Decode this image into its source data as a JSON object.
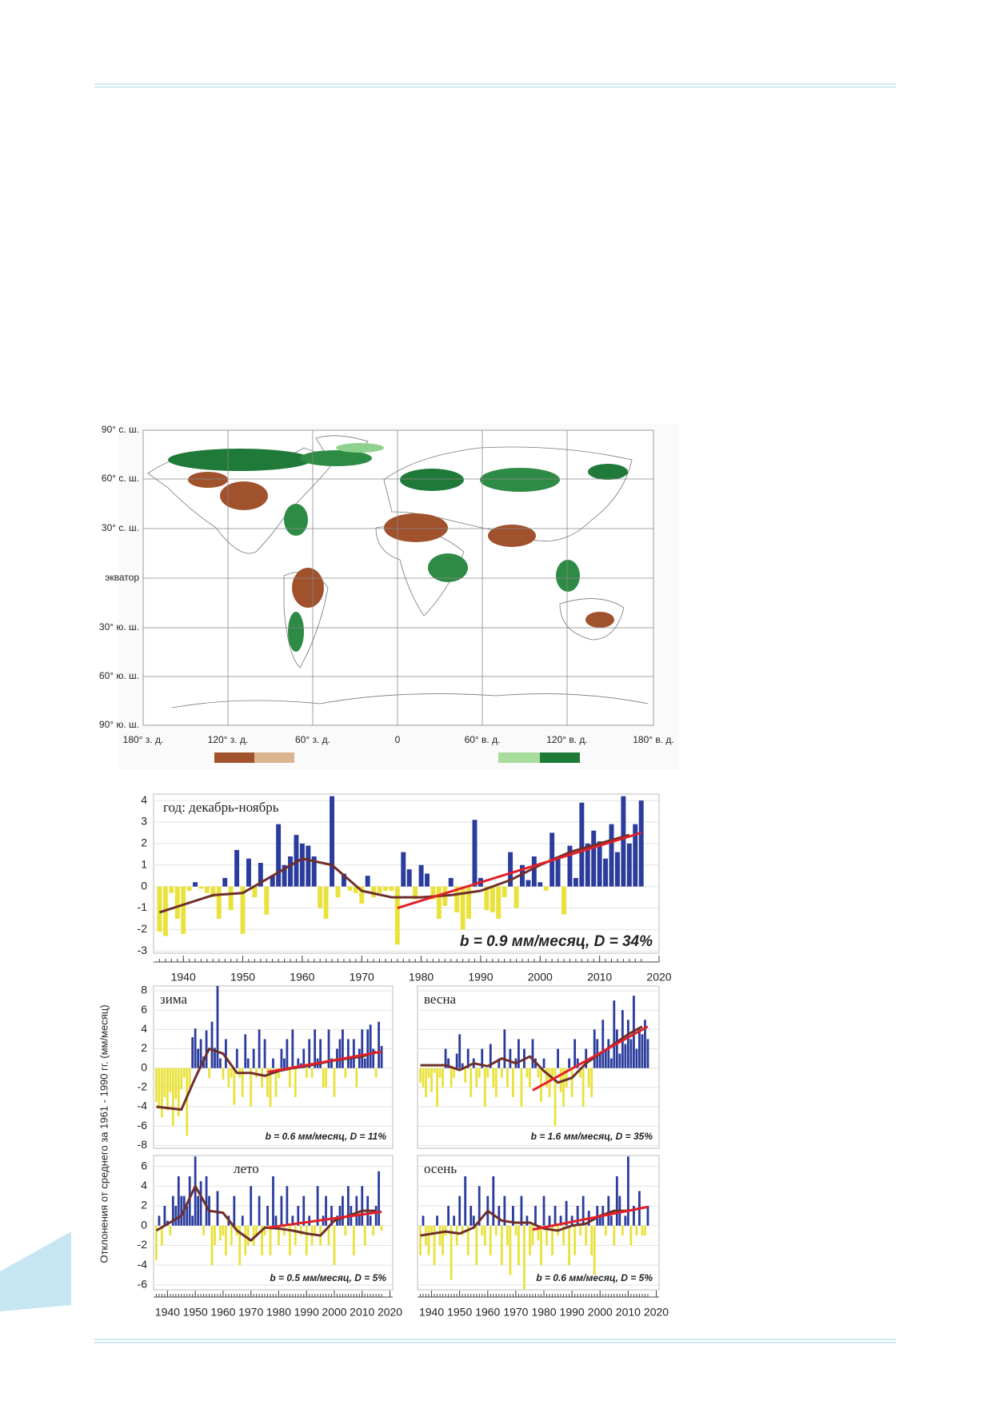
{
  "map": {
    "lat_labels": [
      "90° с. ш.",
      "60° с. ш.",
      "30° с. ш.",
      "экватор",
      "30° ю. ш.",
      "60° ю. ш.",
      "90° ю. ш."
    ],
    "lon_labels": [
      "180° з. д.",
      "120° з. д.",
      "60° з. д.",
      "0",
      "60° в. д.",
      "120° в. д.",
      "180° в. д."
    ]
  },
  "y_axis_label": "Отклонения от среднего за 1961 - 1990 гг. (мм/месяц)",
  "chart_data": [
    {
      "type": "bar",
      "title": "год: декабрь-ноябрь",
      "annotation": "b = 0.9 мм/месяц, D = 34%",
      "x": [
        1936,
        1937,
        1938,
        1939,
        1940,
        1941,
        1942,
        1943,
        1944,
        1945,
        1946,
        1947,
        1948,
        1949,
        1950,
        1951,
        1952,
        1953,
        1954,
        1955,
        1956,
        1957,
        1958,
        1959,
        1960,
        1961,
        1962,
        1963,
        1964,
        1965,
        1966,
        1967,
        1968,
        1969,
        1970,
        1971,
        1972,
        1973,
        1974,
        1975,
        1976,
        1977,
        1978,
        1979,
        1980,
        1981,
        1982,
        1983,
        1984,
        1985,
        1986,
        1987,
        1988,
        1989,
        1990,
        1991,
        1992,
        1993,
        1994,
        1995,
        1996,
        1997,
        1998,
        1999,
        2000,
        2001,
        2002,
        2003,
        2004,
        2005,
        2006,
        2007,
        2008,
        2009,
        2010,
        2011,
        2012,
        2013,
        2014,
        2015,
        2016,
        2017
      ],
      "values": [
        -2.1,
        -2.3,
        -0.3,
        -1.5,
        -2.2,
        -0.2,
        0.2,
        -0.1,
        -0.3,
        -0.5,
        -1.5,
        0.4,
        -1.1,
        1.7,
        -2.2,
        1.3,
        -0.5,
        1.1,
        -1.3,
        0.5,
        2.9,
        1.0,
        1.4,
        2.4,
        2.0,
        1.9,
        1.4,
        -1.0,
        -1.5,
        4.2,
        -0.5,
        0.6,
        -0.2,
        -0.3,
        -0.8,
        0.5,
        -0.5,
        -0.3,
        -0.2,
        -0.2,
        -2.7,
        1.6,
        0.8,
        -0.6,
        1.0,
        0.6,
        -0.6,
        -1.5,
        -0.9,
        0.4,
        -1.2,
        -2.0,
        -1.5,
        3.1,
        0.4,
        -1.1,
        -1.2,
        -1.5,
        -0.5,
        1.6,
        -1.0,
        1.0,
        0.3,
        1.4,
        0.2,
        -0.2,
        2.5,
        1.4,
        -1.3,
        1.9,
        0.4,
        3.9,
        2.0,
        2.6,
        2.1,
        1.3,
        2.9,
        1.6,
        4.2,
        2.0,
        2.9,
        4.0
      ],
      "colors": {
        "positive": "#2b3c9c",
        "negative": "#e9e23b"
      },
      "smoothed": {
        "color": "#6e2f2b",
        "x": [
          1936,
          1945,
          1950,
          1955,
          1960,
          1965,
          1970,
          1975,
          1980,
          1985,
          1990,
          1995,
          2000,
          2005,
          2010,
          2015
        ],
        "values": [
          -1.2,
          -0.4,
          -0.3,
          0.5,
          1.3,
          1.0,
          -0.2,
          -0.5,
          -0.5,
          -0.4,
          -0.2,
          0.3,
          1.0,
          1.6,
          2.0,
          2.4
        ]
      },
      "trend": {
        "color": "#e2202a",
        "x": [
          1976,
          2017
        ],
        "values": [
          -1.0,
          2.5
        ]
      },
      "xlim": [
        1935,
        2020
      ],
      "ylim": [
        -3.1,
        4.3
      ],
      "xticks": [
        1940,
        1950,
        1960,
        1970,
        1980,
        1990,
        2000,
        2010,
        2020
      ],
      "yticks": [
        -3,
        -2,
        -1,
        0,
        1,
        2,
        3,
        4
      ]
    },
    {
      "type": "bar",
      "title": "зима",
      "annotation": "b = 0.6 мм/месяц, D = 11%",
      "x": [
        1936,
        1937,
        1938,
        1939,
        1940,
        1941,
        1942,
        1943,
        1944,
        1945,
        1946,
        1947,
        1948,
        1949,
        1950,
        1951,
        1952,
        1953,
        1954,
        1955,
        1956,
        1957,
        1958,
        1959,
        1960,
        1961,
        1962,
        1963,
        1964,
        1965,
        1966,
        1967,
        1968,
        1969,
        1970,
        1971,
        1972,
        1973,
        1974,
        1975,
        1976,
        1977,
        1978,
        1979,
        1980,
        1981,
        1982,
        1983,
        1984,
        1985,
        1986,
        1987,
        1988,
        1989,
        1990,
        1991,
        1992,
        1993,
        1994,
        1995,
        1996,
        1997,
        1998,
        1999,
        2000,
        2001,
        2002,
        2003,
        2004,
        2005,
        2006,
        2007,
        2008,
        2009,
        2010,
        2011,
        2012,
        2013,
        2014,
        2015,
        2016,
        2017
      ],
      "values": [
        -3.5,
        -4.2,
        -5.1,
        -3.0,
        -4.4,
        -2.5,
        -6.0,
        -3.2,
        -5.0,
        -2.2,
        -1.0,
        -7.0,
        -2.0,
        3.2,
        4.1,
        2.0,
        3.0,
        1.2,
        3.9,
        -1.0,
        4.8,
        2.1,
        8.5,
        1.0,
        -1.2,
        3.0,
        -2.0,
        -1.0,
        -3.8,
        2.0,
        -1.0,
        -3.0,
        3.5,
        1.0,
        -4.0,
        2.0,
        -1.0,
        4.0,
        -2.0,
        3.0,
        -3.0,
        -4.0,
        1.0,
        -3.0,
        -1.0,
        2.0,
        1.0,
        3.0,
        -2.0,
        4.0,
        -3.0,
        1.0,
        0.5,
        2.0,
        -1.0,
        3.0,
        -1.0,
        4.0,
        1.0,
        3.0,
        -2.0,
        -2.0,
        4.0,
        1.0,
        -3.0,
        2.0,
        3.0,
        4.0,
        -1.0,
        3.0,
        1.0,
        3.0,
        -2.0,
        2.0,
        4.0,
        1.0,
        4.0,
        4.5,
        2.0,
        -1.0,
        4.8,
        2.3
      ],
      "colors": {
        "positive": "#2b3c9c",
        "negative": "#e9e23b"
      },
      "smoothed": {
        "color": "#6e2f2b",
        "x": [
          1936,
          1945,
          1950,
          1955,
          1960,
          1965,
          1970,
          1975,
          1980,
          1985,
          1990,
          1995,
          2000,
          2005,
          2010,
          2015
        ],
        "values": [
          -4.0,
          -4.3,
          -1.0,
          2.0,
          1.5,
          -0.5,
          -0.5,
          -0.8,
          -0.3,
          0.0,
          0.2,
          0.5,
          0.8,
          1.0,
          1.2,
          1.7
        ]
      },
      "trend": {
        "color": "#e2202a",
        "x": [
          1976,
          2017
        ],
        "values": [
          -0.4,
          1.7
        ]
      },
      "xlim": [
        1935,
        2021
      ],
      "ylim": [
        -8.3,
        8.5
      ],
      "yticks": [
        -8,
        -6,
        -4,
        -2,
        0,
        2,
        4,
        6,
        8
      ]
    },
    {
      "type": "bar",
      "title": "весна",
      "annotation": "b = 1.6 мм/месяц, D = 35%",
      "x": [
        1936,
        1937,
        1938,
        1939,
        1940,
        1941,
        1942,
        1943,
        1944,
        1945,
        1946,
        1947,
        1948,
        1949,
        1950,
        1951,
        1952,
        1953,
        1954,
        1955,
        1956,
        1957,
        1958,
        1959,
        1960,
        1961,
        1962,
        1963,
        1964,
        1965,
        1966,
        1967,
        1968,
        1969,
        1970,
        1971,
        1972,
        1973,
        1974,
        1975,
        1976,
        1977,
        1978,
        1979,
        1980,
        1981,
        1982,
        1983,
        1984,
        1985,
        1986,
        1987,
        1988,
        1989,
        1990,
        1991,
        1992,
        1993,
        1994,
        1995,
        1996,
        1997,
        1998,
        1999,
        2000,
        2001,
        2002,
        2003,
        2004,
        2005,
        2006,
        2007,
        2008,
        2009,
        2010,
        2011,
        2012,
        2013,
        2014,
        2015,
        2016,
        2017
      ],
      "values": [
        -1.5,
        -2.0,
        -3.0,
        -1.0,
        -2.5,
        -0.5,
        -4.0,
        -1.0,
        -2.0,
        2.0,
        1.0,
        -2.0,
        -1.0,
        1.5,
        3.5,
        0.5,
        -1.5,
        2.0,
        -3.0,
        1.0,
        -2.0,
        -1.0,
        2.0,
        -4.0,
        -1.0,
        2.5,
        -2.0,
        -3.0,
        1.0,
        -1.0,
        4.0,
        -2.0,
        2.0,
        -3.0,
        1.0,
        3.0,
        -4.0,
        2.0,
        -1.0,
        -2.0,
        3.0,
        1.0,
        -1.0,
        -3.5,
        1.0,
        -2.0,
        -3.0,
        -1.0,
        -6.0,
        2.0,
        -2.5,
        -4.0,
        -2.0,
        1.0,
        -3.0,
        3.0,
        1.0,
        -1.0,
        -4.0,
        2.0,
        -2.0,
        -3.0,
        4.0,
        3.0,
        1.5,
        5.0,
        2.0,
        3.0,
        1.0,
        7.0,
        4.0,
        1.5,
        6.0,
        2.5,
        5.0,
        3.0,
        7.5,
        2.0,
        4.0,
        3.5,
        5.0,
        3.0
      ],
      "colors": {
        "positive": "#2b3c9c",
        "negative": "#e9e23b"
      },
      "smoothed": {
        "color": "#6e2f2b",
        "x": [
          1936,
          1945,
          1950,
          1955,
          1960,
          1965,
          1970,
          1975,
          1980,
          1985,
          1990,
          1995,
          2000,
          2005,
          2010,
          2015
        ],
        "values": [
          0.3,
          0.3,
          -0.2,
          0.5,
          0.2,
          1.0,
          0.5,
          1.2,
          -0.3,
          -1.5,
          -1.0,
          0.5,
          1.5,
          2.5,
          3.5,
          4.3
        ]
      },
      "trend": {
        "color": "#e2202a",
        "x": [
          1976,
          2017
        ],
        "values": [
          -2.3,
          4.3
        ]
      },
      "xlim": [
        1935,
        2021
      ],
      "ylim": [
        -8.3,
        8.5
      ],
      "yticks": [
        -8,
        -6,
        -4,
        -2,
        0,
        2,
        4,
        6,
        8
      ]
    },
    {
      "type": "bar",
      "title": "лето",
      "annotation": "b = 0.5 мм/месяц, D = 5%",
      "x": [
        1936,
        1937,
        1938,
        1939,
        1940,
        1941,
        1942,
        1943,
        1944,
        1945,
        1946,
        1947,
        1948,
        1949,
        1950,
        1951,
        1952,
        1953,
        1954,
        1955,
        1956,
        1957,
        1958,
        1959,
        1960,
        1961,
        1962,
        1963,
        1964,
        1965,
        1966,
        1967,
        1968,
        1969,
        1970,
        1971,
        1972,
        1973,
        1974,
        1975,
        1976,
        1977,
        1978,
        1979,
        1980,
        1981,
        1982,
        1983,
        1984,
        1985,
        1986,
        1987,
        1988,
        1989,
        1990,
        1991,
        1992,
        1993,
        1994,
        1995,
        1996,
        1997,
        1998,
        1999,
        2000,
        2001,
        2002,
        2003,
        2004,
        2005,
        2006,
        2007,
        2008,
        2009,
        2010,
        2011,
        2012,
        2013,
        2014,
        2015,
        2016,
        2017
      ],
      "values": [
        -3.5,
        1.0,
        -2.0,
        2.0,
        0.5,
        -1.0,
        3.0,
        2.0,
        5.0,
        3.0,
        3.0,
        2.0,
        5.0,
        1.0,
        7.0,
        3.0,
        4.5,
        -1.0,
        5.0,
        3.0,
        -4.0,
        -2.0,
        3.5,
        -1.5,
        -1.0,
        -3.0,
        1.0,
        -2.0,
        3.0,
        -1.0,
        -4.0,
        1.0,
        -3.0,
        -2.0,
        4.0,
        -2.0,
        -1.0,
        3.0,
        -3.0,
        -1.0,
        2.0,
        -3.0,
        5.0,
        1.0,
        -2.0,
        3.0,
        -1.0,
        4.0,
        -3.0,
        1.0,
        -2.0,
        2.0,
        -1.0,
        3.0,
        -3.0,
        1.0,
        -2.0,
        -1.0,
        4.0,
        -2.0,
        1.0,
        3.0,
        -2.0,
        2.0,
        -4.0,
        1.0,
        2.0,
        3.0,
        -1.0,
        4.0,
        2.0,
        -3.0,
        3.0,
        1.0,
        4.0,
        -2.0,
        3.0,
        1.0,
        -1.0,
        2.0,
        5.5,
        -0.5
      ],
      "colors": {
        "positive": "#2b3c9c",
        "negative": "#e9e23b"
      },
      "smoothed": {
        "color": "#6e2f2b",
        "x": [
          1936,
          1945,
          1950,
          1955,
          1960,
          1965,
          1970,
          1975,
          1980,
          1985,
          1990,
          1995,
          2000,
          2005,
          2010,
          2015
        ],
        "values": [
          -0.5,
          1.0,
          4.0,
          1.5,
          1.3,
          -0.5,
          -1.5,
          -0.2,
          -0.3,
          -0.5,
          -0.8,
          -1.0,
          0.5,
          1.0,
          1.5,
          1.5
        ]
      },
      "trend": {
        "color": "#e2202a",
        "x": [
          1976,
          2017
        ],
        "values": [
          -0.2,
          1.4
        ]
      },
      "xlim": [
        1935,
        2021
      ],
      "ylim": [
        -6.5,
        7.1
      ],
      "xticks": [
        1940,
        1950,
        1960,
        1970,
        1980,
        1990,
        2000,
        2010,
        2020
      ],
      "yticks": [
        -6,
        -4,
        -2,
        0,
        2,
        4,
        6
      ]
    },
    {
      "type": "bar",
      "title": "осень",
      "annotation": "b = 0.6 мм/месяц, D = 5%",
      "x": [
        1936,
        1937,
        1938,
        1939,
        1940,
        1941,
        1942,
        1943,
        1944,
        1945,
        1946,
        1947,
        1948,
        1949,
        1950,
        1951,
        1952,
        1953,
        1954,
        1955,
        1956,
        1957,
        1958,
        1959,
        1960,
        1961,
        1962,
        1963,
        1964,
        1965,
        1966,
        1967,
        1968,
        1969,
        1970,
        1971,
        1972,
        1973,
        1974,
        1975,
        1976,
        1977,
        1978,
        1979,
        1980,
        1981,
        1982,
        1983,
        1984,
        1985,
        1986,
        1987,
        1988,
        1989,
        1990,
        1991,
        1992,
        1993,
        1994,
        1995,
        1996,
        1997,
        1998,
        1999,
        2000,
        2001,
        2002,
        2003,
        2004,
        2005,
        2006,
        2007,
        2008,
        2009,
        2010,
        2011,
        2012,
        2013,
        2014,
        2015,
        2016,
        2017
      ],
      "values": [
        -3.0,
        1.0,
        -2.0,
        -3.0,
        -1.0,
        -4.0,
        1.0,
        -2.0,
        -3.0,
        -1.0,
        2.0,
        -5.5,
        1.0,
        -2.0,
        3.0,
        -1.0,
        5.0,
        -3.0,
        2.0,
        1.0,
        -4.0,
        4.0,
        -1.0,
        -2.0,
        3.0,
        -3.0,
        5.0,
        -1.0,
        2.0,
        -4.0,
        3.0,
        -2.0,
        -5.0,
        2.0,
        -1.0,
        -4.0,
        3.0,
        -6.5,
        1.0,
        -3.0,
        -2.0,
        2.0,
        -1.5,
        -4.0,
        3.0,
        -2.0,
        1.0,
        -3.0,
        2.0,
        -1.0,
        1.0,
        -2.0,
        2.5,
        -4.0,
        1.0,
        -3.0,
        2.0,
        -1.0,
        3.0,
        -2.0,
        1.5,
        -3.0,
        -5.0,
        2.0,
        1.0,
        2.0,
        -1.0,
        3.0,
        1.0,
        -2.0,
        5.0,
        3.0,
        -1.0,
        1.0,
        7.0,
        -2.0,
        2.0,
        -1.0,
        3.5,
        -1.0,
        -1.0,
        2.0
      ],
      "colors": {
        "positive": "#2b3c9c",
        "negative": "#e9e23b"
      },
      "smoothed": {
        "color": "#6e2f2b",
        "x": [
          1936,
          1945,
          1950,
          1955,
          1960,
          1965,
          1970,
          1975,
          1980,
          1985,
          1990,
          1995,
          2000,
          2005,
          2010,
          2015
        ],
        "values": [
          -1.0,
          -0.6,
          -0.8,
          -0.2,
          1.5,
          0.5,
          0.3,
          0.3,
          -0.3,
          -0.5,
          0.0,
          0.2,
          1.0,
          1.5,
          1.5,
          1.8
        ]
      },
      "trend": {
        "color": "#e2202a",
        "x": [
          1976,
          2017
        ],
        "values": [
          -0.4,
          1.9
        ]
      },
      "xlim": [
        1935,
        2021
      ],
      "ylim": [
        -6.5,
        7.1
      ],
      "xticks": [
        1940,
        1950,
        1960,
        1970,
        1980,
        1990,
        2000,
        2010,
        2020
      ],
      "yticks": [
        -6,
        -4,
        -2,
        0,
        2,
        4,
        6
      ]
    }
  ]
}
